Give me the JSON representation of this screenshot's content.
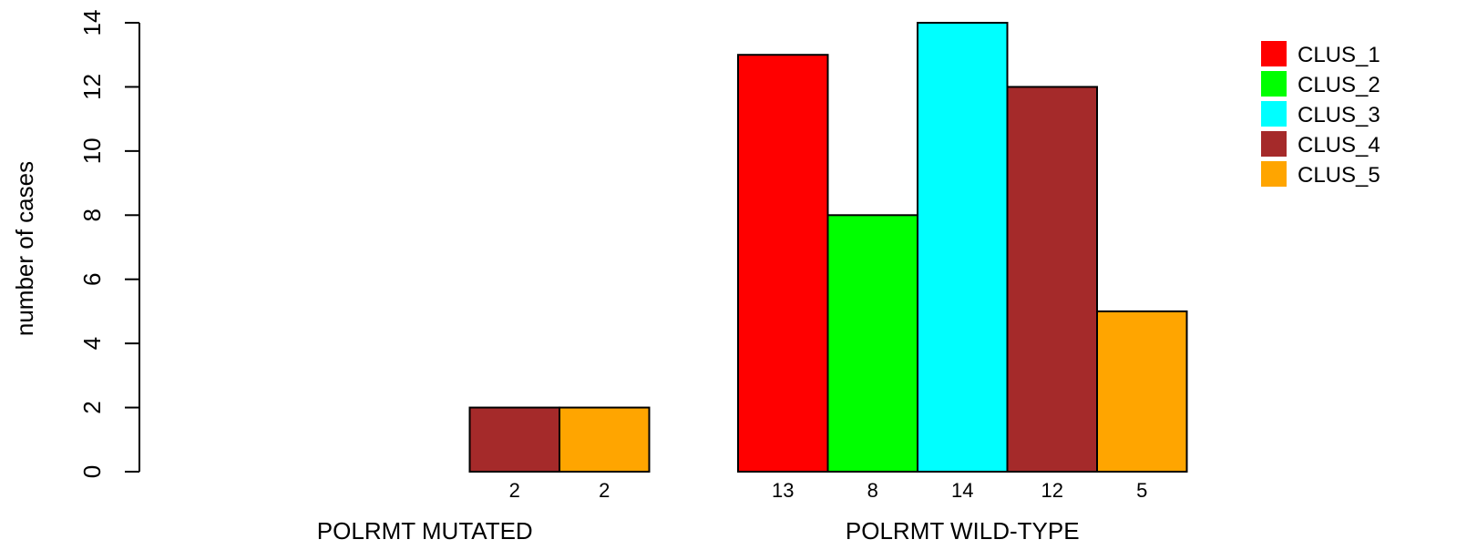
{
  "chart_data": {
    "type": "bar",
    "ylabel": "number of cases",
    "ylim": [
      0,
      14
    ],
    "yticks": [
      0,
      2,
      4,
      6,
      8,
      10,
      12,
      14
    ],
    "grid": false,
    "legend_position": "top-right",
    "groups": [
      "POLRMT MUTATED",
      "POLRMT WILD-TYPE"
    ],
    "series": [
      {
        "name": "CLUS_1",
        "color": "#ff0000",
        "values": [
          0,
          13
        ]
      },
      {
        "name": "CLUS_2",
        "color": "#00ff00",
        "values": [
          0,
          8
        ]
      },
      {
        "name": "CLUS_3",
        "color": "#00ffff",
        "values": [
          0,
          14
        ]
      },
      {
        "name": "CLUS_4",
        "color": "#a52a2a",
        "values": [
          2,
          12
        ]
      },
      {
        "name": "CLUS_5",
        "color": "#ffa500",
        "values": [
          2,
          5
        ]
      }
    ],
    "count_labels": [
      [
        "",
        "",
        "",
        "2",
        "2"
      ],
      [
        "13",
        "8",
        "14",
        "12",
        "5"
      ]
    ]
  }
}
